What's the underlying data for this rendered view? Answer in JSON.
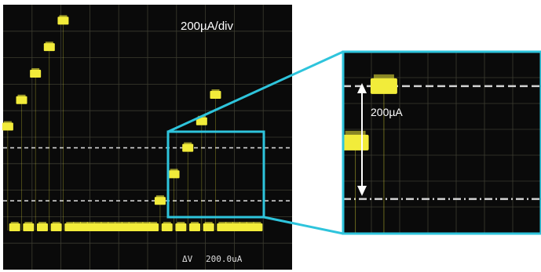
{
  "scale_label": "200µA/div",
  "readout": {
    "symbol": "ΔV",
    "value": "200.0uA"
  },
  "zoom_label": "200µA",
  "colors": {
    "screen": "#0a0a0a",
    "trace": "#f2ec3a",
    "frame": "#2ec4dc",
    "grid": "#3c3c30",
    "cursor": "#d2d2d2"
  },
  "chart_data": {
    "type": "line",
    "title": "",
    "xlabel": "",
    "ylabel": "",
    "ylim": [
      -1.6,
      8.4
    ],
    "y_units_per_div": "200µA",
    "cursors": [
      1.0,
      3.0
    ],
    "series": [
      {
        "name": "",
        "x": [
          0.2,
          0.5,
          0.8,
          1.1,
          1.4,
          1.7,
          2.0,
          2.3,
          2.6,
          2.9,
          3.2,
          3.5,
          3.8,
          4.1,
          4.4,
          4.7,
          5.0,
          5.3,
          5.6,
          5.9,
          6.2,
          6.5,
          6.8,
          7.1,
          7.4,
          7.7,
          8.0,
          8.3,
          8.6,
          8.9,
          9.2,
          9.5,
          9.8,
          10.1,
          10.4,
          10.7,
          11.0
        ],
        "y": [
          3.8,
          0,
          4.8,
          0,
          5.8,
          0,
          6.8,
          0,
          7.8,
          0,
          0,
          0,
          0,
          0,
          0,
          0,
          0,
          0,
          0,
          0,
          0,
          0,
          1,
          0,
          2,
          0,
          3,
          0,
          4,
          0,
          5,
          0,
          0,
          0,
          0,
          0,
          0
        ]
      }
    ]
  }
}
